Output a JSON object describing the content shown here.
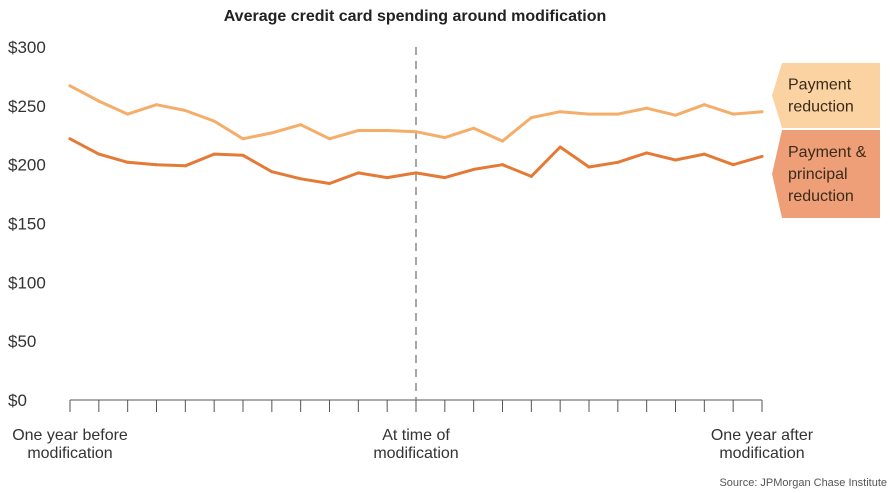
{
  "chart_data": {
    "type": "line",
    "title": "Average credit card spending around modification",
    "y_ticks": [
      "$300",
      "$250",
      "$200",
      "$150",
      "$100",
      "$50",
      "$0"
    ],
    "ylim": [
      0,
      300
    ],
    "x_labels": [
      {
        "lines": [
          "One year before",
          "modification"
        ],
        "x": -12
      },
      {
        "lines": [
          "At time of",
          "modification"
        ],
        "x": 0
      },
      {
        "lines": [
          "One year after",
          "modification"
        ],
        "x": 12
      }
    ],
    "x": [
      -12,
      -11,
      -10,
      -9,
      -8,
      -7,
      -6,
      -5,
      -4,
      -3,
      -2,
      -1,
      0,
      1,
      2,
      3,
      4,
      5,
      6,
      7,
      8,
      9,
      10,
      11,
      12
    ],
    "series": [
      {
        "name": "Payment reduction",
        "label_lines": [
          "Payment",
          "reduction"
        ],
        "color": "#f5ad6a",
        "legend_fill": "#fbd3a2",
        "values": [
          267,
          254,
          243,
          251,
          246,
          237,
          222,
          227,
          234,
          222,
          229,
          229,
          228,
          223,
          231,
          220,
          240,
          245,
          243,
          243,
          248,
          242,
          251,
          243,
          245
        ]
      },
      {
        "name": "Payment & principal reduction",
        "label_lines": [
          "Payment &",
          "principal",
          "reduction"
        ],
        "color": "#e47a36",
        "legend_fill": "#ee9f78",
        "values": [
          222,
          209,
          202,
          200,
          199,
          209,
          208,
          194,
          188,
          184,
          193,
          189,
          193,
          189,
          196,
          200,
          190,
          215,
          198,
          202,
          210,
          204,
          209,
          200,
          207
        ]
      }
    ],
    "reference_line": {
      "x": 0,
      "style": "dashed"
    },
    "grid": false,
    "legend": "right, labels at line ends"
  },
  "source": "Source: JPMorgan Chase Institute"
}
